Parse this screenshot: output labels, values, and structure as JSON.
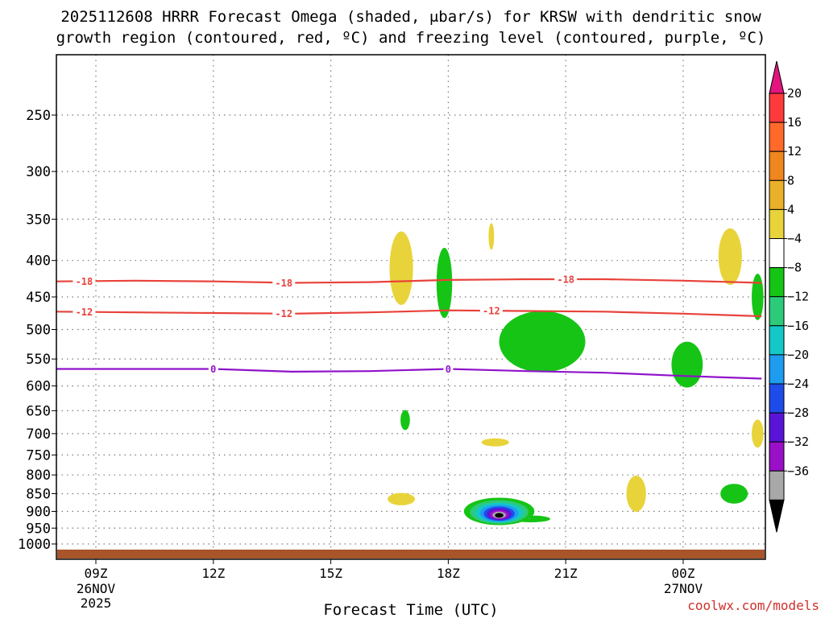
{
  "title": {
    "line1": "2025112608 HRRR Forecast Omega (shaded, μbar/s) for KRSW with dendritic snow",
    "line2": "growth region (contoured, red, ºC) and freezing level (contoured, purple, ºC)"
  },
  "credit": "coolwx.com/models",
  "chart_data": {
    "type": "heatmap",
    "title": "2025112608 HRRR Forecast Omega (shaded, μbar/s) for KRSW with dendritic snow growth region (contoured, red, ºC) and freezing level (contoured, purple, ºC)",
    "xlabel": "Forecast Time (UTC)",
    "ylabel": "",
    "x_ticks": [
      {
        "hour": 9,
        "label": "09Z",
        "sub1": "26NOV",
        "sub2": "2025"
      },
      {
        "hour": 12,
        "label": "12Z",
        "sub1": "",
        "sub2": ""
      },
      {
        "hour": 15,
        "label": "15Z",
        "sub1": "",
        "sub2": ""
      },
      {
        "hour": 18,
        "label": "18Z",
        "sub1": "",
        "sub2": ""
      },
      {
        "hour": 21,
        "label": "21Z",
        "sub1": "",
        "sub2": ""
      },
      {
        "hour": 24,
        "label": "00Z",
        "sub1": "27NOV",
        "sub2": ""
      }
    ],
    "x_range_hours": [
      8,
      26
    ],
    "y_axis": "pressure (mb), reversed",
    "y_ticks": [
      250,
      300,
      350,
      400,
      450,
      500,
      550,
      600,
      650,
      700,
      750,
      800,
      850,
      900,
      950,
      1000
    ],
    "grid": true,
    "colorbar": {
      "unit": "μbar/s",
      "tick_labels": [
        "20",
        "16",
        "12",
        "8",
        "4",
        "-4",
        "-8",
        "-12",
        "-16",
        "-20",
        "-24",
        "-28",
        "-32",
        "-36"
      ],
      "colors": [
        "#ff3a3a",
        "#ff6a2a",
        "#f0861e",
        "#eab02a",
        "#e8d43a",
        "#ffffff",
        "#16c416",
        "#2dca7a",
        "#14c8c8",
        "#1e9cf0",
        "#1e4ce8",
        "#5a14d8",
        "#9a10c8",
        "#a8a8a8"
      ],
      "top_color": "#e3147e",
      "bottom_color": "#000000"
    },
    "contours": [
      {
        "type": "temperature",
        "value": -18,
        "label": "-18",
        "color": "#e8423a",
        "points": [
          [
            8.0,
            428
          ],
          [
            10.0,
            427
          ],
          [
            12.0,
            428
          ],
          [
            14.0,
            430
          ],
          [
            16.0,
            429
          ],
          [
            18.0,
            426
          ],
          [
            20.0,
            425
          ],
          [
            22.0,
            425
          ],
          [
            24.0,
            427
          ],
          [
            26.0,
            430
          ]
        ],
        "label_hours": [
          8.7,
          13.8,
          21.0
        ]
      },
      {
        "type": "temperature",
        "value": -12,
        "label": "-12",
        "color": "#e8423a",
        "points": [
          [
            8.0,
            472
          ],
          [
            10.0,
            473
          ],
          [
            12.0,
            474
          ],
          [
            14.0,
            475
          ],
          [
            16.0,
            473
          ],
          [
            18.0,
            470
          ],
          [
            20.0,
            471
          ],
          [
            22.0,
            472
          ],
          [
            24.0,
            475
          ],
          [
            26.0,
            479
          ]
        ],
        "label_hours": [
          8.7,
          13.8,
          19.1
        ]
      },
      {
        "type": "freezing_level",
        "value": 0,
        "label": "0",
        "color": "#9013c9",
        "points": [
          [
            8.0,
            568
          ],
          [
            10.0,
            568
          ],
          [
            12.0,
            568
          ],
          [
            14.0,
            573
          ],
          [
            16.0,
            572
          ],
          [
            18.0,
            568
          ],
          [
            20.0,
            572
          ],
          [
            22.0,
            575
          ],
          [
            24.0,
            581
          ],
          [
            26.0,
            586
          ]
        ],
        "label_hours": [
          12.0,
          18.0
        ]
      }
    ],
    "omega_features": [
      {
        "category": "4 to 8",
        "center": [
          16.8,
          410
        ],
        "extent": [
          0.3,
          95
        ]
      },
      {
        "category": "4 to 8",
        "center": [
          19.1,
          370
        ],
        "extent": [
          0.07,
          30
        ]
      },
      {
        "category": "4 to 8",
        "center": [
          16.8,
          865
        ],
        "extent": [
          0.35,
          30
        ]
      },
      {
        "category": "4 to 8",
        "center": [
          19.2,
          720
        ],
        "extent": [
          0.35,
          15
        ]
      },
      {
        "category": "4 to 8",
        "center": [
          22.8,
          850
        ],
        "extent": [
          0.25,
          95
        ]
      },
      {
        "category": "4 to 8",
        "center": [
          25.2,
          395
        ],
        "extent": [
          0.3,
          70
        ]
      },
      {
        "category": "4 to 8",
        "center": [
          25.9,
          700
        ],
        "extent": [
          0.15,
          60
        ]
      },
      {
        "category": "-4 to -8",
        "center": [
          16.9,
          670
        ],
        "extent": [
          0.12,
          40
        ]
      },
      {
        "category": "-4 to -8",
        "center": [
          17.9,
          430
        ],
        "extent": [
          0.2,
          95
        ]
      },
      {
        "category": "-4 to -8",
        "center": [
          20.4,
          520
        ],
        "extent": [
          1.1,
          100
        ]
      },
      {
        "category": "-4 to -8",
        "center": [
          24.1,
          560
        ],
        "extent": [
          0.4,
          80
        ]
      },
      {
        "category": "-4 to -8",
        "center": [
          25.3,
          850
        ],
        "extent": [
          0.35,
          50
        ]
      },
      {
        "category": "-4 to -8",
        "center": [
          25.9,
          450
        ],
        "extent": [
          0.15,
          65
        ]
      },
      {
        "category": "-4 to -36",
        "center": [
          19.3,
          900
        ],
        "extent": [
          0.9,
          75
        ],
        "core_min": -36
      }
    ],
    "surface": {
      "color": "#a8552a",
      "pressure": 1010
    }
  }
}
